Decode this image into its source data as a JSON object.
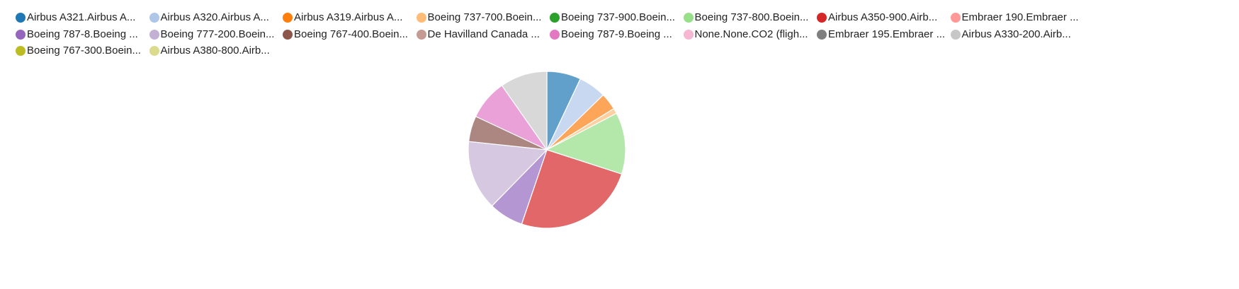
{
  "chart_data": {
    "type": "pie",
    "legend_position": "top",
    "legend": [
      {
        "label": "Airbus A321.Airbus A...",
        "color": "#1f77b4"
      },
      {
        "label": "Airbus A320.Airbus A...",
        "color": "#aec7e8"
      },
      {
        "label": "Airbus A319.Airbus A...",
        "color": "#ff7f0e"
      },
      {
        "label": "Boeing 737-700.Boein...",
        "color": "#ffbb78"
      },
      {
        "label": "Boeing 737-900.Boein...",
        "color": "#2ca02c"
      },
      {
        "label": "Boeing 737-800.Boein...",
        "color": "#98df8a"
      },
      {
        "label": "Airbus A350-900.Airb...",
        "color": "#d62728"
      },
      {
        "label": "Embraer 190.Embraer ...",
        "color": "#ff9896"
      },
      {
        "label": "Boeing 787-8.Boeing ...",
        "color": "#9467bd"
      },
      {
        "label": "Boeing 777-200.Boein...",
        "color": "#c5b0d5"
      },
      {
        "label": "Boeing 767-400.Boein...",
        "color": "#8c564b"
      },
      {
        "label": "De Havilland Canada ...",
        "color": "#c49c94"
      },
      {
        "label": "Boeing 787-9.Boeing ...",
        "color": "#e377c2"
      },
      {
        "label": "None.None.CO2 (fligh...",
        "color": "#f7b6d2"
      },
      {
        "label": "Embraer 195.Embraer ...",
        "color": "#7f7f7f"
      },
      {
        "label": "Airbus A330-200.Airb...",
        "color": "#c7c7c7"
      },
      {
        "label": "Boeing 767-300.Boein...",
        "color": "#bcbd22"
      },
      {
        "label": "Airbus A380-800.Airb...",
        "color": "#dbdb8d"
      }
    ],
    "slices": [
      {
        "value": 7.0,
        "color": "#62a0cc"
      },
      {
        "value": 5.7,
        "color": "#c8d8f0"
      },
      {
        "value": 3.5,
        "color": "#fda65a"
      },
      {
        "value": 1.1,
        "color": "#fdd0a1"
      },
      {
        "value": 12.7,
        "color": "#b4e8aa"
      },
      {
        "value": 25.2,
        "color": "#e26768"
      },
      {
        "value": 7.1,
        "color": "#b496d2"
      },
      {
        "value": 14.4,
        "color": "#d6c8e0"
      },
      {
        "value": 5.3,
        "color": "#ac8680"
      },
      {
        "value": 8.3,
        "color": "#eaa1d7"
      },
      {
        "value": 9.7,
        "color": "#d8d8d8"
      }
    ]
  }
}
